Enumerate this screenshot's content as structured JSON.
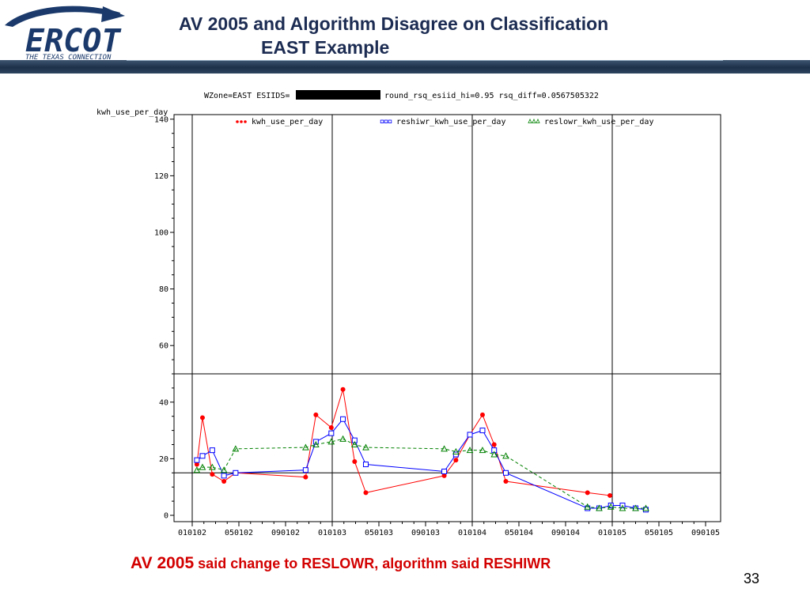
{
  "header": {
    "logo_text": "ERCOT",
    "logo_tagline": "THE TEXAS CONNECTION",
    "title_line1": "AV 2005 and Algorithm Disagree on Classification",
    "title_line2": "EAST Example"
  },
  "chart_data": {
    "type": "line",
    "title_prefix": "WZone=EAST ESIIDS=",
    "title_suffix": "round_rsq_esiid_hi=0.95 rsq_diff=0.0567505322",
    "ylabel": "kwh_use_per_day",
    "xlabel": "",
    "ylim": [
      0,
      140
    ],
    "yticks": [
      0,
      20,
      40,
      60,
      80,
      100,
      120,
      140
    ],
    "xlim": [
      0,
      12
    ],
    "xticks": [
      {
        "x": 0,
        "label": "010102"
      },
      {
        "x": 1,
        "label": "050102"
      },
      {
        "x": 2,
        "label": "090102"
      },
      {
        "x": 3,
        "label": "010103"
      },
      {
        "x": 4,
        "label": "050103"
      },
      {
        "x": 5,
        "label": "090103"
      },
      {
        "x": 6,
        "label": "010104"
      },
      {
        "x": 7,
        "label": "050104"
      },
      {
        "x": 8,
        "label": "090104"
      },
      {
        "x": 9,
        "label": "010105"
      },
      {
        "x": 10,
        "label": "050105"
      },
      {
        "x": 11,
        "label": "090105"
      }
    ],
    "reference_lines": {
      "vertical_x": [
        0,
        3,
        6,
        9
      ],
      "horizontal_y": [
        15,
        50
      ]
    },
    "legend_position": "top",
    "series": [
      {
        "name": "kwh_use_per_day",
        "color": "#ff0000",
        "marker": "dot",
        "dashed": false,
        "x": [
          0.1,
          0.22,
          0.43,
          0.68,
          0.93,
          2.43,
          2.65,
          2.98,
          3.23,
          3.48,
          3.72,
          5.4,
          5.65,
          5.95,
          6.22,
          6.47,
          6.72,
          8.47,
          8.95
        ],
        "y": [
          18,
          34.5,
          14.5,
          12,
          15,
          13.5,
          35.5,
          31,
          44.5,
          19,
          8,
          14,
          19.5,
          28.5,
          35.5,
          25,
          12,
          8,
          7
        ]
      },
      {
        "name": "reshiwr_kwh_use_per_day",
        "color": "#0000ff",
        "marker": "square",
        "dashed": false,
        "x": [
          0.1,
          0.22,
          0.43,
          0.68,
          0.93,
          2.43,
          2.65,
          2.98,
          3.23,
          3.48,
          3.72,
          5.4,
          5.65,
          5.95,
          6.22,
          6.47,
          6.72,
          8.47,
          8.72,
          8.97,
          9.22,
          9.5,
          9.72
        ],
        "y": [
          19.5,
          21,
          23,
          14,
          15,
          16,
          26,
          29,
          34,
          26.5,
          18,
          15.5,
          21.5,
          28.5,
          30,
          23,
          15,
          2.5,
          2.5,
          3.5,
          3.5,
          2.5,
          2
        ]
      },
      {
        "name": "reslowr_kwh_use_per_day",
        "color": "#008000",
        "marker": "triangle",
        "dashed": true,
        "x": [
          0.1,
          0.22,
          0.43,
          0.68,
          0.93,
          2.43,
          2.65,
          2.98,
          3.23,
          3.48,
          3.72,
          5.4,
          5.65,
          5.95,
          6.22,
          6.47,
          6.72,
          8.47,
          8.72,
          8.97,
          9.22,
          9.5,
          9.72
        ],
        "y": [
          16,
          17,
          17,
          16,
          23.5,
          24,
          25,
          26,
          27,
          25,
          24,
          23.5,
          22.5,
          23,
          23,
          21.5,
          21,
          3,
          2.5,
          3,
          2.5,
          2.5,
          2.5
        ]
      }
    ]
  },
  "caption": {
    "part1": "AV 2005",
    "part2": " said change to RESLOWR, algorithm said RESHIWR"
  },
  "page_number": "33"
}
